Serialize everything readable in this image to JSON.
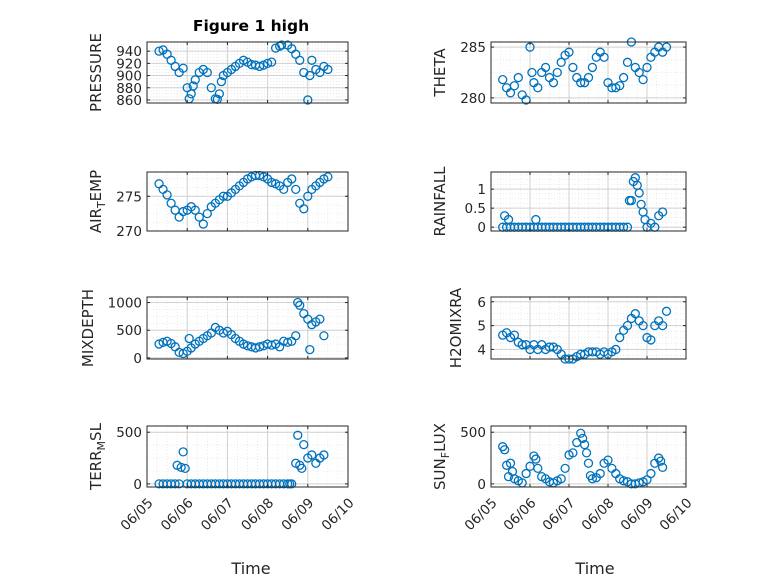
{
  "figure": {
    "title": "Figure 1 high",
    "xlabel": "Time"
  },
  "chart_data": [
    {
      "type": "scatter",
      "name": "PRESSURE",
      "ylabel": "PRESSURE",
      "ylim": [
        855,
        955
      ],
      "yticks": [
        860,
        880,
        900,
        920,
        940
      ],
      "xlim": [
        0,
        5
      ],
      "xtick_labels": [
        "06/05",
        "06/06",
        "06/07",
        "06/08",
        "06/09",
        "06/10"
      ],
      "grid": true,
      "title": "Figure 1 high",
      "x": [
        0.3,
        0.4,
        0.5,
        0.6,
        0.7,
        0.8,
        0.9,
        1.0,
        1.05,
        1.1,
        1.15,
        1.2,
        1.3,
        1.4,
        1.5,
        1.6,
        1.7,
        1.75,
        1.8,
        1.85,
        1.9,
        2.0,
        2.1,
        2.2,
        2.3,
        2.4,
        2.5,
        2.6,
        2.7,
        2.8,
        2.9,
        3.0,
        3.1,
        3.2,
        3.3,
        3.35,
        3.5,
        3.6,
        3.7,
        3.8,
        3.9,
        4.0,
        4.05,
        4.1,
        4.2,
        4.3,
        4.4,
        4.5
      ],
      "y": [
        940,
        942,
        935,
        925,
        915,
        905,
        912,
        880,
        862,
        870,
        883,
        893,
        905,
        910,
        905,
        880,
        862,
        861,
        870,
        890,
        900,
        905,
        910,
        915,
        920,
        925,
        922,
        918,
        917,
        915,
        917,
        920,
        922,
        945,
        948,
        950,
        950,
        944,
        935,
        925,
        905,
        860,
        900,
        925,
        910,
        905,
        915,
        910
      ]
    },
    {
      "type": "scatter",
      "name": "THETA",
      "ylabel": "THETA",
      "ylim": [
        279.5,
        285.5
      ],
      "yticks": [
        280,
        285
      ],
      "xlim": [
        0,
        5
      ],
      "xtick_labels": [
        "06/05",
        "06/06",
        "06/07",
        "06/08",
        "06/09",
        "06/10"
      ],
      "grid": true,
      "x": [
        0.3,
        0.4,
        0.5,
        0.6,
        0.7,
        0.8,
        0.9,
        1.0,
        1.05,
        1.1,
        1.2,
        1.3,
        1.4,
        1.5,
        1.6,
        1.7,
        1.8,
        1.9,
        2.0,
        2.1,
        2.2,
        2.3,
        2.4,
        2.5,
        2.6,
        2.7,
        2.8,
        2.9,
        3.0,
        3.1,
        3.2,
        3.3,
        3.4,
        3.5,
        3.6,
        3.7,
        3.8,
        3.9,
        4.0,
        4.1,
        4.2,
        4.3,
        4.4,
        4.5
      ],
      "y": [
        281.8,
        281.0,
        280.5,
        281.2,
        282.0,
        280.3,
        279.8,
        285.0,
        282.5,
        281.5,
        281.0,
        282.5,
        283.0,
        282.0,
        281.5,
        282.5,
        283.5,
        284.2,
        284.5,
        283.0,
        282.0,
        281.5,
        281.5,
        282.0,
        283.0,
        284.0,
        284.5,
        284.0,
        281.5,
        281.0,
        281.0,
        281.2,
        282.0,
        283.5,
        285.5,
        283.0,
        282.5,
        281.8,
        283.0,
        284.0,
        284.5,
        285.0,
        284.5,
        285.0
      ]
    },
    {
      "type": "scatter",
      "name": "AIR_TEMP",
      "ylabel": "AIR_TEMP",
      "ylim": [
        270,
        278.5
      ],
      "yticks": [
        270,
        275
      ],
      "xlim": [
        0,
        5
      ],
      "xtick_labels": [
        "06/05",
        "06/06",
        "06/07",
        "06/08",
        "06/09",
        "06/10"
      ],
      "grid": true,
      "x": [
        0.3,
        0.4,
        0.5,
        0.6,
        0.7,
        0.8,
        0.9,
        1.0,
        1.1,
        1.2,
        1.3,
        1.4,
        1.5,
        1.6,
        1.7,
        1.8,
        1.9,
        2.0,
        2.1,
        2.2,
        2.3,
        2.4,
        2.5,
        2.6,
        2.7,
        2.8,
        2.9,
        3.0,
        3.1,
        3.2,
        3.3,
        3.4,
        3.5,
        3.6,
        3.7,
        3.8,
        3.9,
        4.0,
        4.1,
        4.2,
        4.3,
        4.4,
        4.5
      ],
      "y": [
        276.8,
        276.0,
        275.2,
        274.0,
        273.0,
        272.0,
        272.8,
        273.0,
        273.5,
        273.0,
        272.0,
        271.0,
        272.5,
        273.5,
        274.0,
        274.5,
        275.0,
        275.0,
        275.5,
        276.0,
        276.5,
        277.0,
        277.5,
        277.8,
        278.0,
        278.0,
        277.8,
        277.5,
        277.0,
        276.8,
        276.5,
        276.0,
        277.0,
        277.5,
        276.0,
        274.0,
        273.2,
        275.0,
        276.0,
        276.5,
        277.0,
        277.5,
        277.8
      ]
    },
    {
      "type": "scatter",
      "name": "RAINFALL",
      "ylabel": "RAINFALL",
      "ylim": [
        -0.1,
        1.45
      ],
      "yticks": [
        0,
        0.5,
        1
      ],
      "xlim": [
        0,
        5
      ],
      "xtick_labels": [
        "06/05",
        "06/06",
        "06/07",
        "06/08",
        "06/09",
        "06/10"
      ],
      "grid": true,
      "x": [
        0.3,
        0.35,
        0.4,
        0.45,
        0.5,
        0.6,
        0.7,
        0.8,
        0.9,
        1.0,
        1.1,
        1.15,
        1.2,
        1.3,
        1.4,
        1.5,
        1.6,
        1.7,
        1.8,
        1.9,
        2.0,
        2.1,
        2.2,
        2.3,
        2.4,
        2.5,
        2.6,
        2.7,
        2.8,
        2.9,
        3.0,
        3.1,
        3.2,
        3.3,
        3.4,
        3.5,
        3.55,
        3.6,
        3.65,
        3.7,
        3.75,
        3.8,
        3.85,
        3.9,
        3.95,
        4.0,
        4.1,
        4.2,
        4.3,
        4.4
      ],
      "y": [
        0,
        0.3,
        0,
        0.2,
        0,
        0,
        0,
        0,
        0,
        0,
        0,
        0.2,
        0,
        0,
        0,
        0,
        0,
        0,
        0,
        0,
        0,
        0,
        0,
        0,
        0,
        0,
        0,
        0,
        0,
        0,
        0,
        0,
        0,
        0,
        0,
        0,
        0.7,
        0.7,
        1.2,
        1.3,
        1.1,
        0.9,
        0.6,
        0.4,
        0.2,
        0,
        0.1,
        0,
        0.3,
        0.4
      ]
    },
    {
      "type": "scatter",
      "name": "MIXDEPTH",
      "ylabel": "MIXDEPTH",
      "ylim": [
        -20,
        1100
      ],
      "yticks": [
        0,
        500,
        1000
      ],
      "xlim": [
        0,
        5
      ],
      "xtick_labels": [
        "06/05",
        "06/06",
        "06/07",
        "06/08",
        "06/09",
        "06/10"
      ],
      "grid": true,
      "x": [
        0.3,
        0.4,
        0.5,
        0.6,
        0.7,
        0.8,
        0.9,
        1.0,
        1.05,
        1.1,
        1.2,
        1.3,
        1.4,
        1.5,
        1.6,
        1.7,
        1.8,
        1.9,
        2.0,
        2.1,
        2.2,
        2.3,
        2.4,
        2.5,
        2.6,
        2.7,
        2.8,
        2.9,
        3.0,
        3.1,
        3.2,
        3.3,
        3.4,
        3.5,
        3.6,
        3.7,
        3.75,
        3.8,
        3.9,
        4.0,
        4.05,
        4.1,
        4.2,
        4.3,
        4.4
      ],
      "y": [
        250,
        280,
        300,
        260,
        200,
        100,
        80,
        120,
        350,
        180,
        250,
        300,
        350,
        400,
        450,
        550,
        500,
        450,
        480,
        420,
        350,
        300,
        250,
        220,
        200,
        180,
        200,
        220,
        250,
        230,
        250,
        200,
        300,
        280,
        300,
        400,
        1000,
        950,
        800,
        700,
        150,
        600,
        650,
        700,
        400
      ]
    },
    {
      "type": "scatter",
      "name": "H2OMIXRA",
      "ylabel": "H2OMIXRA",
      "ylim": [
        3.6,
        6.2
      ],
      "yticks": [
        4,
        5,
        6
      ],
      "xlim": [
        0,
        5
      ],
      "xtick_labels": [
        "06/05",
        "06/06",
        "06/07",
        "06/08",
        "06/09",
        "06/10"
      ],
      "grid": true,
      "x": [
        0.3,
        0.4,
        0.5,
        0.6,
        0.7,
        0.8,
        0.9,
        1.0,
        1.1,
        1.2,
        1.3,
        1.4,
        1.5,
        1.6,
        1.7,
        1.8,
        1.9,
        2.0,
        2.1,
        2.2,
        2.3,
        2.4,
        2.5,
        2.6,
        2.7,
        2.8,
        2.9,
        3.0,
        3.1,
        3.2,
        3.3,
        3.4,
        3.5,
        3.6,
        3.7,
        3.8,
        3.9,
        4.0,
        4.1,
        4.2,
        4.3,
        4.4,
        4.5
      ],
      "y": [
        4.6,
        4.7,
        4.5,
        4.6,
        4.3,
        4.2,
        4.2,
        4.0,
        4.2,
        4.0,
        4.2,
        4.0,
        4.1,
        4.1,
        4.0,
        3.8,
        3.6,
        3.6,
        3.6,
        3.7,
        3.8,
        3.8,
        3.9,
        3.9,
        3.9,
        3.8,
        3.9,
        3.8,
        3.9,
        4.0,
        4.5,
        4.8,
        5.0,
        5.3,
        5.5,
        5.2,
        5.0,
        4.5,
        4.4,
        5.0,
        5.2,
        5.0,
        5.6
      ]
    },
    {
      "type": "scatter",
      "name": "TERR_MSL",
      "ylabel": "TERR_MSL",
      "ylim": [
        -30,
        560
      ],
      "yticks": [
        0,
        500
      ],
      "xlim": [
        0,
        5
      ],
      "xtick_labels": [
        "06/05",
        "06/06",
        "06/07",
        "06/08",
        "06/09",
        "06/10"
      ],
      "grid": true,
      "x": [
        0.3,
        0.4,
        0.5,
        0.6,
        0.7,
        0.75,
        0.8,
        0.85,
        0.9,
        0.95,
        1.0,
        1.1,
        1.2,
        1.3,
        1.4,
        1.5,
        1.6,
        1.7,
        1.8,
        1.9,
        2.0,
        2.1,
        2.2,
        2.3,
        2.4,
        2.5,
        2.6,
        2.7,
        2.8,
        2.9,
        3.0,
        3.1,
        3.2,
        3.3,
        3.4,
        3.5,
        3.55,
        3.6,
        3.7,
        3.75,
        3.8,
        3.85,
        3.9,
        4.0,
        4.1,
        4.2,
        4.3,
        4.4
      ],
      "y": [
        0,
        0,
        0,
        0,
        0,
        180,
        0,
        160,
        310,
        150,
        0,
        0,
        0,
        0,
        0,
        0,
        0,
        0,
        0,
        0,
        0,
        0,
        0,
        0,
        0,
        0,
        0,
        0,
        0,
        0,
        0,
        0,
        0,
        0,
        0,
        0,
        0,
        0,
        200,
        470,
        180,
        150,
        380,
        250,
        280,
        200,
        250,
        280
      ]
    },
    {
      "type": "scatter",
      "name": "SUN_FLUX",
      "ylabel": "SUN_FLUX",
      "ylim": [
        -30,
        560
      ],
      "yticks": [
        0,
        500
      ],
      "xlim": [
        0,
        5
      ],
      "xtick_labels": [
        "06/05",
        "06/06",
        "06/07",
        "06/08",
        "06/09",
        "06/10"
      ],
      "grid": true,
      "x": [
        0.3,
        0.35,
        0.4,
        0.45,
        0.5,
        0.55,
        0.6,
        0.7,
        0.8,
        0.9,
        1.0,
        1.1,
        1.15,
        1.2,
        1.3,
        1.4,
        1.5,
        1.6,
        1.7,
        1.8,
        1.9,
        2.0,
        2.1,
        2.2,
        2.3,
        2.35,
        2.4,
        2.45,
        2.5,
        2.55,
        2.6,
        2.7,
        2.8,
        2.9,
        3.0,
        3.1,
        3.2,
        3.3,
        3.4,
        3.5,
        3.6,
        3.7,
        3.8,
        3.9,
        4.0,
        4.1,
        4.2,
        4.3,
        4.35,
        4.4
      ],
      "y": [
        360,
        330,
        180,
        70,
        200,
        120,
        50,
        30,
        10,
        100,
        170,
        270,
        240,
        150,
        70,
        50,
        20,
        10,
        30,
        50,
        150,
        280,
        300,
        400,
        490,
        440,
        380,
        300,
        200,
        80,
        50,
        60,
        100,
        200,
        230,
        150,
        100,
        50,
        30,
        20,
        0,
        0,
        10,
        20,
        40,
        100,
        200,
        250,
        220,
        160
      ]
    }
  ]
}
